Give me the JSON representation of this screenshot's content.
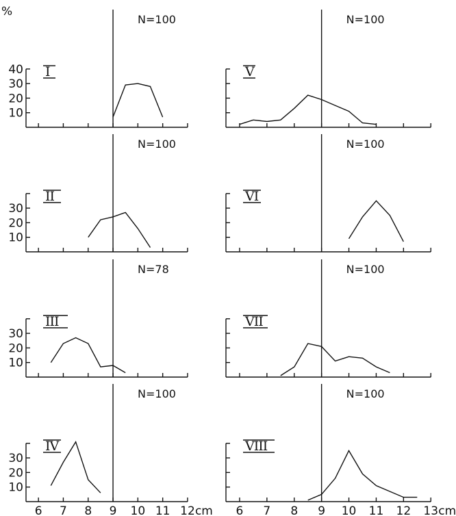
{
  "figure": {
    "y_unit": "%",
    "x_unit": "cm"
  },
  "chart_data": [
    {
      "type": "line",
      "panel": "I",
      "n_label": "N=100",
      "x": [
        9,
        9.5,
        10,
        10.5,
        11
      ],
      "values": [
        7,
        29,
        30,
        28,
        7
      ],
      "xlim": [
        5.5,
        12
      ],
      "ylim": [
        0,
        40
      ],
      "x_ticks": [
        6,
        7,
        8,
        9,
        10,
        11,
        12
      ],
      "x_tick_labels": [
        "6",
        "7",
        "8",
        "9",
        "10",
        "11",
        "12"
      ],
      "y_ticks": [
        10,
        20,
        30,
        40
      ],
      "y_tick_labels": [
        "10",
        "20",
        "30",
        "40"
      ],
      "reference_x": 9
    },
    {
      "type": "line",
      "panel": "V",
      "n_label": "N=100",
      "x": [
        6,
        6.5,
        7,
        7.5,
        8,
        8.5,
        9,
        9.5,
        10,
        10.5,
        11
      ],
      "values": [
        2,
        5,
        4,
        5,
        13,
        22,
        19,
        15,
        11,
        3,
        2
      ],
      "xlim": [
        5.5,
        13
      ],
      "ylim": [
        0,
        40
      ],
      "x_ticks": [
        6,
        7,
        8,
        9,
        10,
        11,
        12,
        13
      ],
      "x_tick_labels": [
        "6",
        "7",
        "8",
        "9",
        "10",
        "11",
        "12",
        "13"
      ],
      "y_ticks": [
        10,
        20,
        30,
        40
      ],
      "y_tick_labels": [
        "",
        "",
        "",
        ""
      ],
      "reference_x": 9
    },
    {
      "type": "line",
      "panel": "II",
      "n_label": "N=100",
      "x": [
        8,
        8.5,
        9,
        9.5,
        10,
        10.5
      ],
      "values": [
        10,
        22,
        24,
        27,
        16,
        3
      ],
      "xlim": [
        5.5,
        12
      ],
      "ylim": [
        0,
        40
      ],
      "x_ticks": [
        6,
        7,
        8,
        9,
        10,
        11,
        12
      ],
      "x_tick_labels": [
        "6",
        "7",
        "8",
        "9",
        "10",
        "11",
        "12"
      ],
      "y_ticks": [
        10,
        20,
        30,
        40
      ],
      "y_tick_labels": [
        "10",
        "20",
        "30",
        ""
      ],
      "reference_x": 9
    },
    {
      "type": "line",
      "panel": "VI",
      "n_label": "N=100",
      "x": [
        10,
        10.5,
        11,
        11.5,
        12
      ],
      "values": [
        9,
        24,
        35,
        25,
        7
      ],
      "xlim": [
        5.5,
        13
      ],
      "ylim": [
        0,
        40
      ],
      "x_ticks": [
        6,
        7,
        8,
        9,
        10,
        11,
        12,
        13
      ],
      "x_tick_labels": [
        "6",
        "7",
        "8",
        "9",
        "10",
        "11",
        "12",
        "13"
      ],
      "y_ticks": [
        10,
        20,
        30,
        40
      ],
      "y_tick_labels": [
        "",
        "",
        "",
        ""
      ],
      "reference_x": 9
    },
    {
      "type": "line",
      "panel": "III",
      "n_label": "N=78",
      "x": [
        6.5,
        7,
        7.5,
        8,
        8.5,
        9,
        9.5
      ],
      "values": [
        10,
        23,
        27,
        23,
        7,
        8,
        3
      ],
      "xlim": [
        5.5,
        12
      ],
      "ylim": [
        0,
        40
      ],
      "x_ticks": [
        6,
        7,
        8,
        9,
        10,
        11,
        12
      ],
      "x_tick_labels": [
        "6",
        "7",
        "8",
        "9",
        "10",
        "11",
        "12"
      ],
      "y_ticks": [
        10,
        20,
        30,
        40
      ],
      "y_tick_labels": [
        "10",
        "20",
        "30",
        ""
      ],
      "reference_x": 9
    },
    {
      "type": "line",
      "panel": "VII",
      "n_label": "N=100",
      "x": [
        7.5,
        8,
        8.5,
        9,
        9.5,
        10,
        10.5,
        11,
        11.5
      ],
      "values": [
        1,
        7,
        23,
        21,
        11,
        14,
        13,
        7,
        3
      ],
      "xlim": [
        5.5,
        13
      ],
      "ylim": [
        0,
        40
      ],
      "x_ticks": [
        6,
        7,
        8,
        9,
        10,
        11,
        12,
        13
      ],
      "x_tick_labels": [
        "6",
        "7",
        "8",
        "9",
        "10",
        "11",
        "12",
        "13"
      ],
      "y_ticks": [
        10,
        20,
        30,
        40
      ],
      "y_tick_labels": [
        "",
        "",
        "",
        ""
      ],
      "reference_x": 9
    },
    {
      "type": "line",
      "panel": "IV",
      "n_label": "N=100",
      "x": [
        6.5,
        7,
        7.5,
        8,
        8.5
      ],
      "values": [
        11,
        27,
        41,
        15,
        6
      ],
      "xlim": [
        5.5,
        12
      ],
      "ylim": [
        0,
        40
      ],
      "x_ticks": [
        6,
        7,
        8,
        9,
        10,
        11,
        12
      ],
      "x_tick_labels": [
        "6",
        "7",
        "8",
        "9",
        "10",
        "11",
        "12"
      ],
      "y_ticks": [
        10,
        20,
        30,
        40
      ],
      "y_tick_labels": [
        "10",
        "20",
        "30",
        ""
      ],
      "reference_x": 9
    },
    {
      "type": "line",
      "panel": "VIII",
      "n_label": "N=100",
      "x": [
        8.5,
        9,
        9.5,
        10,
        10.5,
        11,
        11.5,
        12,
        12.5
      ],
      "values": [
        1,
        5,
        16,
        35,
        19,
        11,
        7,
        3,
        3
      ],
      "xlim": [
        5.5,
        13
      ],
      "ylim": [
        0,
        40
      ],
      "x_ticks": [
        6,
        7,
        8,
        9,
        10,
        11,
        12,
        13
      ],
      "x_tick_labels": [
        "6",
        "7",
        "8",
        "9",
        "10",
        "11",
        "12",
        "13"
      ],
      "y_ticks": [
        10,
        20,
        30,
        40
      ],
      "y_tick_labels": [
        "",
        "",
        "",
        ""
      ],
      "reference_x": 9
    }
  ]
}
